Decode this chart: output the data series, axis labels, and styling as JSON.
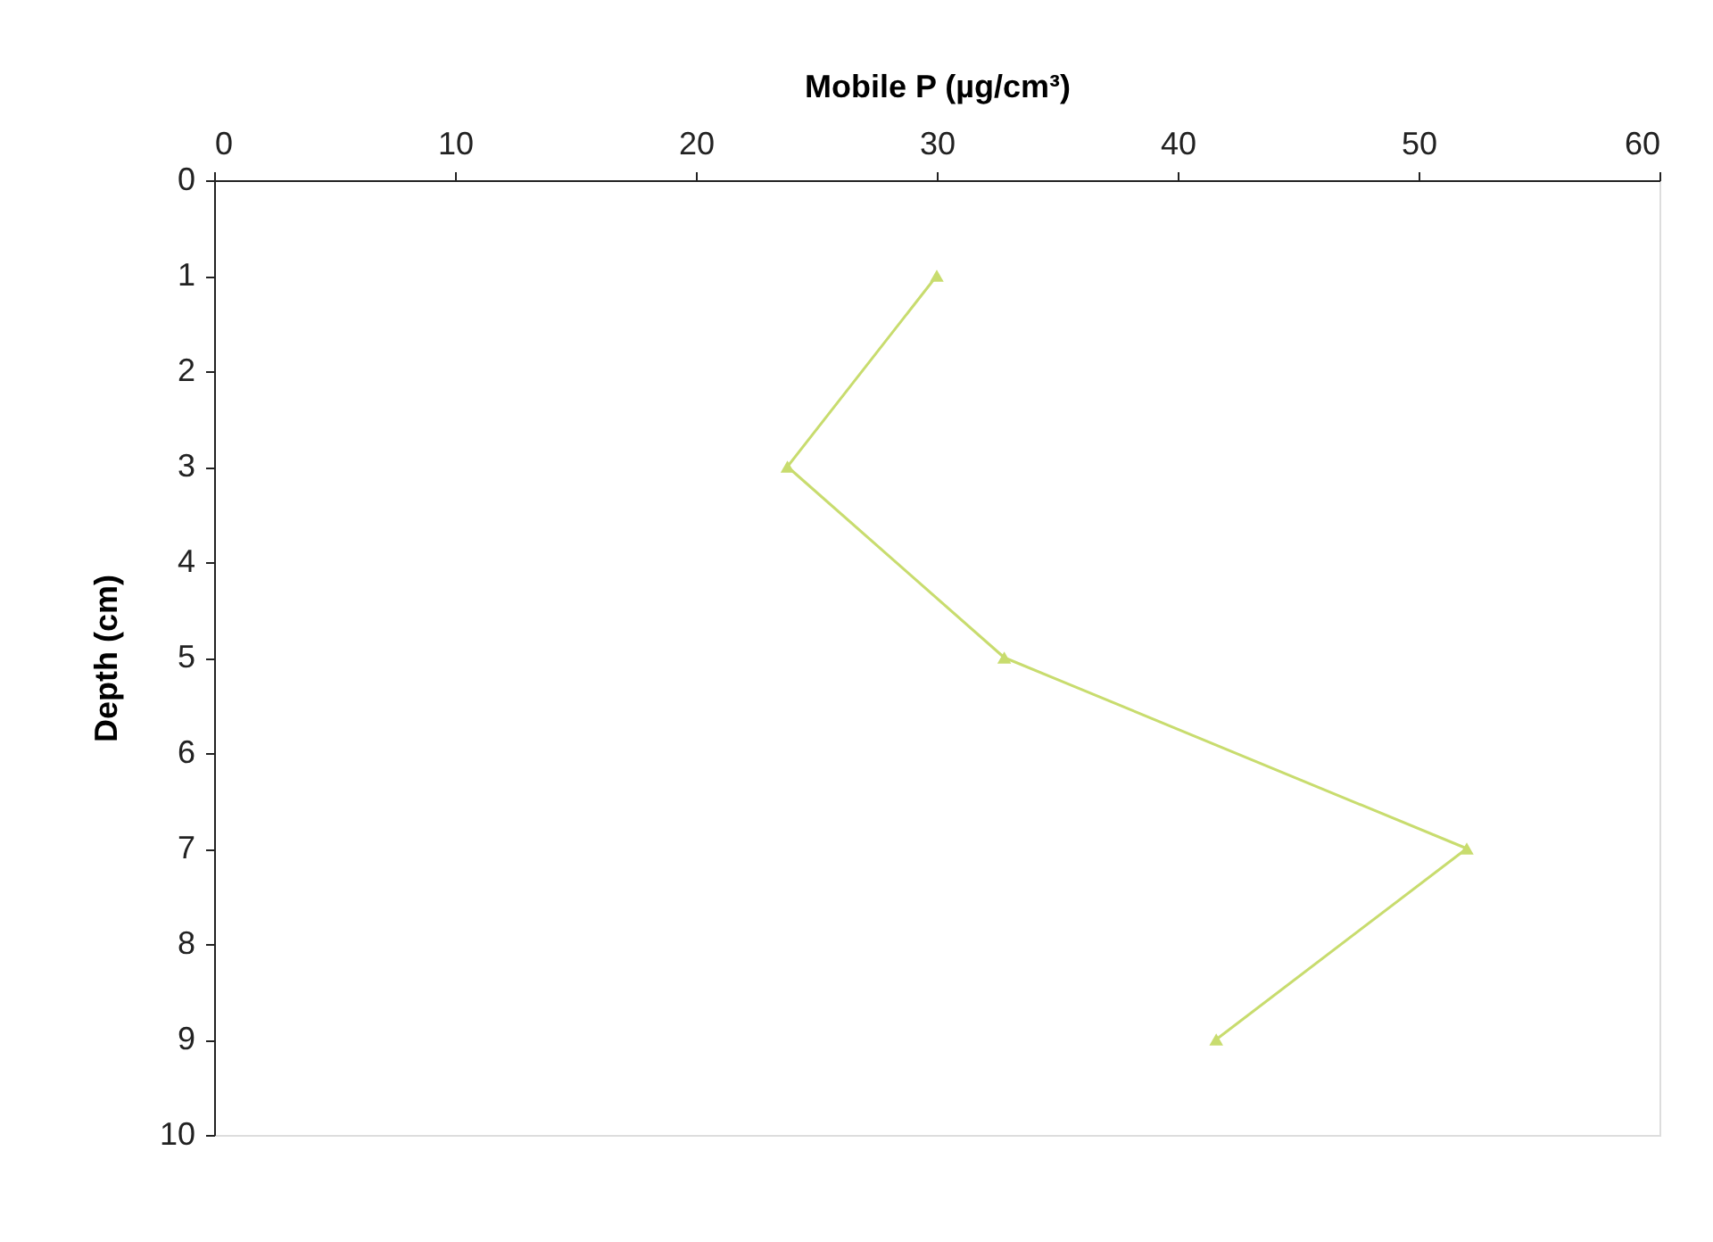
{
  "chart_data": {
    "type": "line",
    "xlabel": "Mobile P (µg/cm³)",
    "ylabel": "Depth (cm)",
    "xlim": [
      0,
      60
    ],
    "xticks": [
      0,
      10,
      20,
      30,
      40,
      50,
      60
    ],
    "ylim": [
      10,
      0
    ],
    "yticks": [
      0,
      1,
      2,
      3,
      4,
      5,
      6,
      7,
      8,
      9,
      10
    ],
    "grid": false,
    "legend": false,
    "marker": "triangle",
    "line_style": "solid",
    "series": [
      {
        "color": "#c8dc6e",
        "x": [
          30,
          23.8,
          32.8,
          52,
          41.6
        ],
        "values": [
          1,
          3,
          5,
          7,
          9
        ]
      }
    ]
  }
}
